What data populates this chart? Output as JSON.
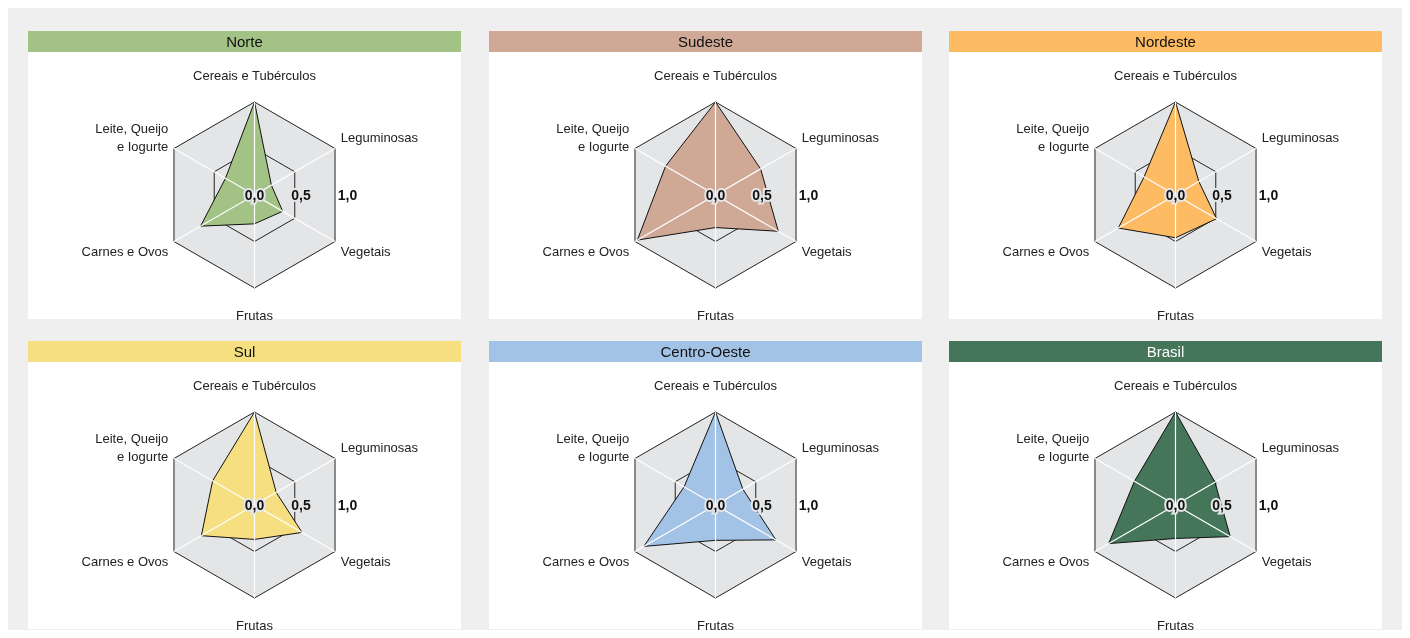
{
  "chart_data": [
    {
      "type": "radar",
      "title": "Norte",
      "categories": [
        "Cereais e Tubérculos",
        "Leguminosas",
        "Vegetais",
        "Frutas",
        "Carnes e Ovos",
        "Leite, Queijo e Iogurte"
      ],
      "series": [
        {
          "color": "#a3c285",
          "values": [
            1.0,
            0.21,
            0.35,
            0.31,
            0.67,
            0.36
          ]
        }
      ],
      "ylim": [
        0,
        1
      ],
      "yticks": [
        {
          "value": 0,
          "label": "0,0"
        },
        {
          "value": 0.5,
          "label": "0,5"
        },
        {
          "value": 1,
          "label": "1,0"
        }
      ],
      "grid": true
    },
    {
      "type": "radar",
      "title": "Sudeste",
      "categories": [
        "Cereais e Tubérculos",
        "Leguminosas",
        "Vegetais",
        "Frutas",
        "Carnes e Ovos",
        "Leite, Queijo e Iogurte"
      ],
      "series": [
        {
          "color": "#cfa896",
          "values": [
            1.0,
            0.56,
            0.78,
            0.35,
            0.97,
            0.62
          ]
        }
      ],
      "ylim": [
        0,
        1
      ],
      "yticks": [
        {
          "value": 0,
          "label": "0,0"
        },
        {
          "value": 0.5,
          "label": "0,5"
        },
        {
          "value": 1,
          "label": "1,0"
        }
      ],
      "grid": true
    },
    {
      "type": "radar",
      "title": "Nordeste",
      "categories": [
        "Cereais e Tubérculos",
        "Leguminosas",
        "Vegetais",
        "Frutas",
        "Carnes e Ovos",
        "Leite, Queijo e Iogurte"
      ],
      "series": [
        {
          "color": "#fdbb63",
          "values": [
            1.0,
            0.29,
            0.51,
            0.46,
            0.71,
            0.39
          ]
        }
      ],
      "ylim": [
        0,
        1
      ],
      "yticks": [
        {
          "value": 0,
          "label": "0,0"
        },
        {
          "value": 0.5,
          "label": "0,5"
        },
        {
          "value": 1,
          "label": "1,0"
        }
      ],
      "grid": true
    },
    {
      "type": "radar",
      "title": "Sul",
      "categories": [
        "Cereais e Tubérculos",
        "Leguminosas",
        "Vegetais",
        "Frutas",
        "Carnes e Ovos",
        "Leite, Queijo e Iogurte"
      ],
      "series": [
        {
          "color": "#f5df80",
          "values": [
            1.0,
            0.27,
            0.59,
            0.37,
            0.66,
            0.52
          ]
        }
      ],
      "ylim": [
        0,
        1
      ],
      "yticks": [
        {
          "value": 0,
          "label": "0,0"
        },
        {
          "value": 0.5,
          "label": "0,5"
        },
        {
          "value": 1,
          "label": "1,0"
        }
      ],
      "grid": true
    },
    {
      "type": "radar",
      "title": "Centro-Oeste",
      "categories": [
        "Cereais e Tubérculos",
        "Leguminosas",
        "Vegetais",
        "Frutas",
        "Carnes e Ovos",
        "Leite, Queijo e Iogurte"
      ],
      "series": [
        {
          "color": "#a2c3e6",
          "values": [
            1.0,
            0.34,
            0.75,
            0.38,
            0.89,
            0.39
          ]
        }
      ],
      "ylim": [
        0,
        1
      ],
      "yticks": [
        {
          "value": 0,
          "label": "0,0"
        },
        {
          "value": 0.5,
          "label": "0,5"
        },
        {
          "value": 1,
          "label": "1,0"
        }
      ],
      "grid": true
    },
    {
      "type": "radar",
      "title": "Brasil",
      "categories": [
        "Cereais e Tubérculos",
        "Leguminosas",
        "Vegetais",
        "Frutas",
        "Carnes e Ovos",
        "Leite, Queijo e Iogurte"
      ],
      "series": [
        {
          "color": "#45765a",
          "values": [
            1.0,
            0.49,
            0.68,
            0.36,
            0.83,
            0.51
          ]
        }
      ],
      "ylim": [
        0,
        1
      ],
      "yticks": [
        {
          "value": 0,
          "label": "0,0"
        },
        {
          "value": 0.5,
          "label": "0,5"
        },
        {
          "value": 1,
          "label": "1,0"
        }
      ],
      "grid": true
    }
  ]
}
